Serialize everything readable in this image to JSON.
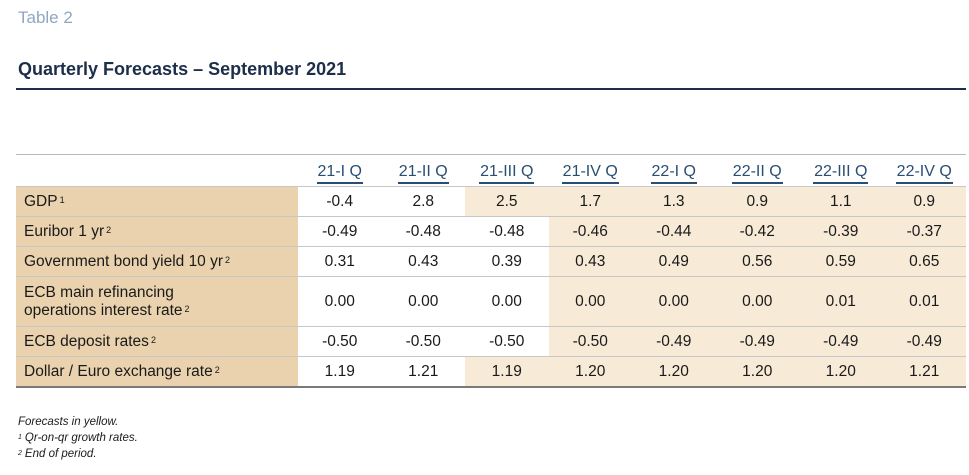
{
  "header": {
    "label": "Table 2",
    "title": "Quarterly Forecasts – September 2021"
  },
  "colors": {
    "label_text": "#8fa7c2",
    "title_text": "#1c2e4a",
    "label_column_bg": "#e9d2ad",
    "forecast_bg": "#f7ead7"
  },
  "table": {
    "columns": [
      "21-I Q",
      "21-II Q",
      "21-III Q",
      "21-IV Q",
      "22-I Q",
      "22-II Q",
      "22-III Q",
      "22-IV Q"
    ],
    "rows": [
      {
        "label": "GDP",
        "note": "1",
        "values": [
          "-0.4",
          "2.8",
          "2.5",
          "1.7",
          "1.3",
          "0.9",
          "1.1",
          "0.9"
        ]
      },
      {
        "label": "Euribor 1 yr",
        "note": "2",
        "values": [
          "-0.49",
          "-0.48",
          "-0.48",
          "-0.46",
          "-0.44",
          "-0.42",
          "-0.39",
          "-0.37"
        ]
      },
      {
        "label": "Government bond yield 10 yr",
        "note": "2",
        "values": [
          "0.31",
          "0.43",
          "0.39",
          "0.43",
          "0.49",
          "0.56",
          "0.59",
          "0.65"
        ]
      },
      {
        "label_line1": "ECB main refinancing",
        "label_line2": "operations interest rate",
        "note": "2",
        "values": [
          "0.00",
          "0.00",
          "0.00",
          "0.00",
          "0.00",
          "0.00",
          "0.01",
          "0.01"
        ]
      },
      {
        "label": "ECB deposit rates",
        "note": "2",
        "values": [
          "-0.50",
          "-0.50",
          "-0.50",
          "-0.50",
          "-0.49",
          "-0.49",
          "-0.49",
          "-0.49"
        ]
      },
      {
        "label": "Dollar / Euro exchange rate",
        "note": "2",
        "values": [
          "1.19",
          "1.21",
          "1.19",
          "1.20",
          "1.20",
          "1.20",
          "1.20",
          "1.21"
        ]
      }
    ]
  },
  "notes": {
    "line1": "Forecasts in yellow.",
    "line2_mark": "1",
    "line2": "Qr-on-qr growth rates.",
    "line3_mark": "2",
    "line3": "End of period."
  }
}
